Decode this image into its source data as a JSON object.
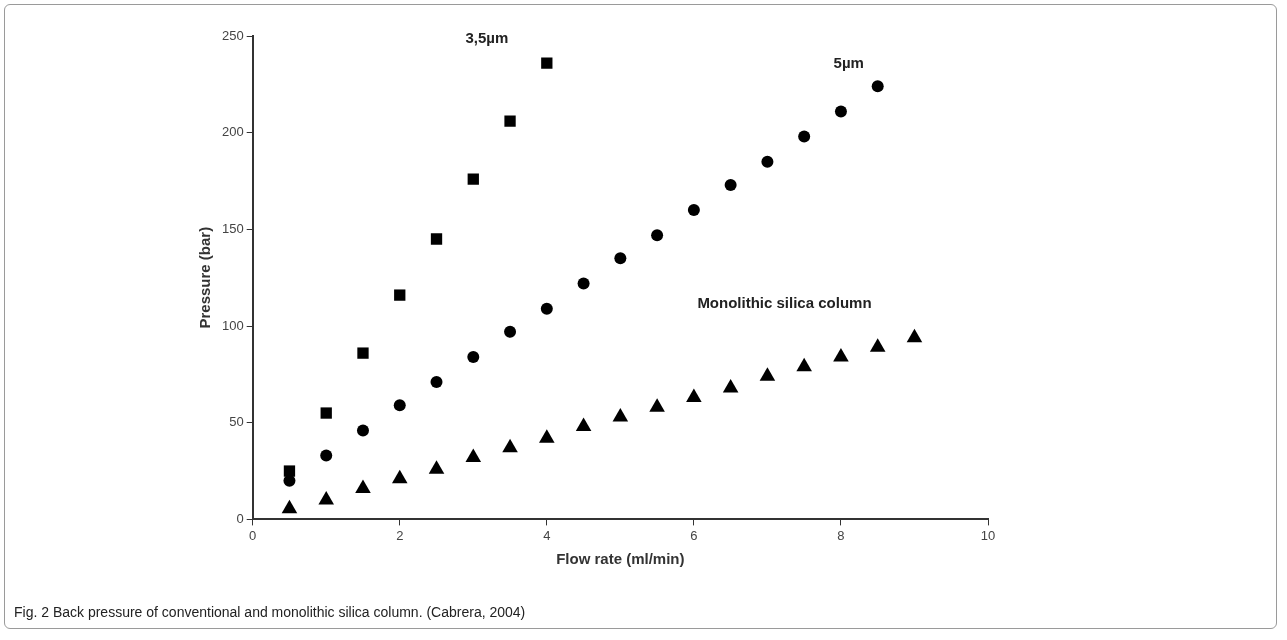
{
  "chart_data": {
    "type": "scatter",
    "xlabel": "Flow rate (ml/min)",
    "ylabel": "Pressure (bar)",
    "xlim": [
      0,
      10
    ],
    "xticks": [
      0,
      2,
      4,
      6,
      8,
      10
    ],
    "ylim": [
      0,
      250
    ],
    "yticks": [
      0,
      50,
      100,
      150,
      200,
      250
    ],
    "grid": false,
    "legend": false,
    "series": [
      {
        "name": "3,5µm",
        "color": "#000000",
        "marker": "square",
        "x": [
          0.5,
          1,
          1.5,
          2,
          2.5,
          3,
          3.5,
          4
        ],
        "values": [
          25,
          55,
          86,
          116,
          145,
          176,
          206,
          236
        ]
      },
      {
        "name": "5µm",
        "color": "#000000",
        "marker": "circle",
        "x": [
          0.5,
          1,
          1.5,
          2,
          2.5,
          3,
          3.5,
          4,
          4.5,
          5,
          5.5,
          6,
          6.5,
          7,
          7.5,
          8,
          8.5
        ],
        "values": [
          20,
          33,
          46,
          59,
          71,
          84,
          97,
          109,
          122,
          135,
          147,
          160,
          173,
          185,
          198,
          211,
          224
        ]
      },
      {
        "name": "Monolithic silica column",
        "color": "#000000",
        "marker": "triangle",
        "x": [
          0.5,
          1,
          1.5,
          2,
          2.5,
          3,
          3.5,
          4,
          4.5,
          5,
          5.5,
          6,
          6.5,
          7,
          7.5,
          8,
          8.5,
          9
        ],
        "values": [
          5.5,
          10,
          16,
          21,
          26,
          32,
          37,
          42,
          48,
          53,
          58,
          63,
          68,
          74,
          79,
          84,
          89,
          94
        ]
      }
    ],
    "annotations": [
      "Fig. 2 Back pressure of conventional and monolithic silica column. (Cabrera, 2004)"
    ]
  }
}
